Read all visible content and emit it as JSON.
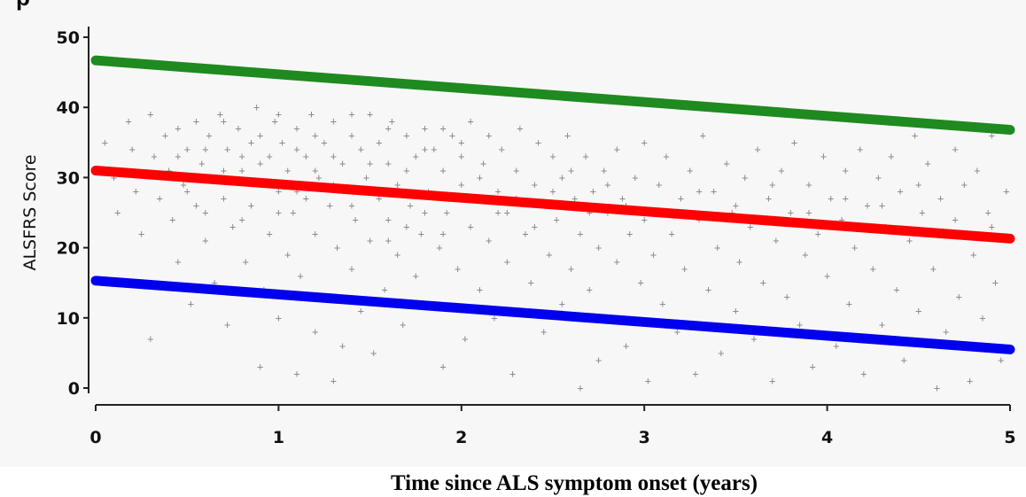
{
  "chart_data": {
    "type": "scatter",
    "title_fragment": "p",
    "xlabel": "Time since ALS symptom onset (years)",
    "ylabel": "ALSFRS Score",
    "xlim": [
      0,
      5
    ],
    "ylim": [
      0,
      50
    ],
    "x_ticks": [
      0,
      1,
      2,
      3,
      4,
      5
    ],
    "y_ticks": [
      0,
      10,
      20,
      30,
      40,
      50
    ],
    "grid": false,
    "legend": "none",
    "marker": "+",
    "lines": [
      {
        "color": "#1f8a1f",
        "x": [
          0,
          5
        ],
        "y": [
          46.7,
          36.8
        ]
      },
      {
        "color": "#ff0000",
        "x": [
          0,
          5
        ],
        "y": [
          31.0,
          21.3
        ]
      },
      {
        "color": "#0000ee",
        "x": [
          0,
          5
        ],
        "y": [
          15.3,
          5.5
        ]
      }
    ],
    "scatter": {
      "color": "#8c8c8c",
      "points": [
        [
          0.05,
          35
        ],
        [
          0.1,
          30
        ],
        [
          0.12,
          25
        ],
        [
          0.18,
          38
        ],
        [
          0.2,
          34
        ],
        [
          0.22,
          28
        ],
        [
          0.25,
          22
        ],
        [
          0.3,
          7
        ],
        [
          0.3,
          39
        ],
        [
          0.32,
          33
        ],
        [
          0.35,
          27
        ],
        [
          0.38,
          36
        ],
        [
          0.4,
          31
        ],
        [
          0.42,
          24
        ],
        [
          0.45,
          18
        ],
        [
          0.45,
          37
        ],
        [
          0.48,
          29
        ],
        [
          0.5,
          34
        ],
        [
          0.52,
          12
        ],
        [
          0.55,
          38
        ],
        [
          0.55,
          26
        ],
        [
          0.58,
          32
        ],
        [
          0.6,
          21
        ],
        [
          0.62,
          36
        ],
        [
          0.65,
          15
        ],
        [
          0.65,
          30
        ],
        [
          0.68,
          39
        ],
        [
          0.7,
          27
        ],
        [
          0.72,
          34
        ],
        [
          0.72,
          9
        ],
        [
          0.75,
          23
        ],
        [
          0.78,
          37
        ],
        [
          0.8,
          31
        ],
        [
          0.82,
          18
        ],
        [
          0.85,
          35
        ],
        [
          0.85,
          26
        ],
        [
          0.88,
          40
        ],
        [
          0.9,
          29
        ],
        [
          0.9,
          3
        ],
        [
          0.92,
          14
        ],
        [
          0.95,
          33
        ],
        [
          0.95,
          22
        ],
        [
          0.98,
          38
        ],
        [
          1.0,
          28
        ],
        [
          1.0,
          10
        ],
        [
          1.02,
          35
        ],
        [
          1.05,
          19
        ],
        [
          1.05,
          31
        ],
        [
          1.08,
          25
        ],
        [
          1.1,
          37
        ],
        [
          1.1,
          2
        ],
        [
          1.12,
          16
        ],
        [
          1.15,
          33
        ],
        [
          1.15,
          27
        ],
        [
          1.18,
          39
        ],
        [
          1.2,
          22
        ],
        [
          1.2,
          8
        ],
        [
          1.22,
          30
        ],
        [
          1.25,
          35
        ],
        [
          1.25,
          13
        ],
        [
          1.28,
          26
        ],
        [
          1.3,
          38
        ],
        [
          1.3,
          1
        ],
        [
          1.32,
          20
        ],
        [
          1.35,
          32
        ],
        [
          1.35,
          6
        ],
        [
          1.38,
          28
        ],
        [
          1.4,
          36
        ],
        [
          1.4,
          17
        ],
        [
          1.42,
          24
        ],
        [
          1.45,
          34
        ],
        [
          1.45,
          11
        ],
        [
          1.48,
          30
        ],
        [
          1.5,
          39
        ],
        [
          1.5,
          21
        ],
        [
          1.52,
          5
        ],
        [
          1.55,
          27
        ],
        [
          1.55,
          35
        ],
        [
          1.58,
          14
        ],
        [
          1.6,
          32
        ],
        [
          1.6,
          24
        ],
        [
          1.62,
          38
        ],
        [
          1.65,
          19
        ],
        [
          1.65,
          29
        ],
        [
          1.68,
          9
        ],
        [
          1.7,
          36
        ],
        [
          1.72,
          26
        ],
        [
          1.75,
          33
        ],
        [
          1.75,
          16
        ],
        [
          1.78,
          22
        ],
        [
          1.8,
          37
        ],
        [
          1.82,
          28
        ],
        [
          1.85,
          12
        ],
        [
          1.85,
          34
        ],
        [
          1.88,
          20
        ],
        [
          1.9,
          31
        ],
        [
          1.9,
          3
        ],
        [
          1.92,
          25
        ],
        [
          1.95,
          36
        ],
        [
          1.98,
          17
        ],
        [
          2.0,
          29
        ],
        [
          2.0,
          33
        ],
        [
          2.02,
          7
        ],
        [
          2.05,
          23
        ],
        [
          2.05,
          38
        ],
        [
          2.08,
          27
        ],
        [
          2.1,
          14
        ],
        [
          2.12,
          32
        ],
        [
          2.15,
          21
        ],
        [
          2.15,
          36
        ],
        [
          2.18,
          10
        ],
        [
          2.2,
          28
        ],
        [
          2.22,
          34
        ],
        [
          2.25,
          18
        ],
        [
          2.25,
          25
        ],
        [
          2.28,
          2
        ],
        [
          2.3,
          31
        ],
        [
          2.32,
          37
        ],
        [
          2.35,
          22
        ],
        [
          2.38,
          15
        ],
        [
          2.4,
          29
        ],
        [
          2.42,
          35
        ],
        [
          2.45,
          8
        ],
        [
          2.45,
          26
        ],
        [
          2.48,
          19
        ],
        [
          2.5,
          33
        ],
        [
          2.52,
          24
        ],
        [
          2.55,
          12
        ],
        [
          2.55,
          30
        ],
        [
          2.58,
          36
        ],
        [
          2.6,
          17
        ],
        [
          2.62,
          27
        ],
        [
          2.65,
          0
        ],
        [
          2.65,
          22
        ],
        [
          2.68,
          33
        ],
        [
          2.7,
          14
        ],
        [
          2.72,
          28
        ],
        [
          2.75,
          4
        ],
        [
          2.75,
          20
        ],
        [
          2.78,
          31
        ],
        [
          2.8,
          25
        ],
        [
          2.82,
          10
        ],
        [
          2.85,
          34
        ],
        [
          2.85,
          18
        ],
        [
          2.88,
          27
        ],
        [
          2.9,
          6
        ],
        [
          2.92,
          22
        ],
        [
          2.95,
          30
        ],
        [
          2.98,
          15
        ],
        [
          3.0,
          35
        ],
        [
          3.0,
          24
        ],
        [
          3.02,
          1
        ],
        [
          3.05,
          19
        ],
        [
          3.08,
          29
        ],
        [
          3.1,
          12
        ],
        [
          3.12,
          33
        ],
        [
          3.15,
          22
        ],
        [
          3.18,
          8
        ],
        [
          3.2,
          27
        ],
        [
          3.22,
          17
        ],
        [
          3.25,
          31
        ],
        [
          3.28,
          2
        ],
        [
          3.3,
          24
        ],
        [
          3.32,
          36
        ],
        [
          3.35,
          14
        ],
        [
          3.38,
          28
        ],
        [
          3.4,
          20
        ],
        [
          3.42,
          5
        ],
        [
          3.45,
          32
        ],
        [
          3.48,
          25
        ],
        [
          3.5,
          11
        ],
        [
          3.52,
          18
        ],
        [
          3.55,
          30
        ],
        [
          3.58,
          23
        ],
        [
          3.6,
          7
        ],
        [
          3.62,
          34
        ],
        [
          3.65,
          15
        ],
        [
          3.68,
          27
        ],
        [
          3.7,
          1
        ],
        [
          3.72,
          21
        ],
        [
          3.75,
          31
        ],
        [
          3.78,
          13
        ],
        [
          3.8,
          25
        ],
        [
          3.82,
          35
        ],
        [
          3.85,
          9
        ],
        [
          3.88,
          19
        ],
        [
          3.9,
          29
        ],
        [
          3.92,
          3
        ],
        [
          3.95,
          22
        ],
        [
          3.98,
          33
        ],
        [
          4.0,
          16
        ],
        [
          4.02,
          27
        ],
        [
          4.05,
          6
        ],
        [
          4.08,
          24
        ],
        [
          4.1,
          31
        ],
        [
          4.12,
          12
        ],
        [
          4.15,
          20
        ],
        [
          4.18,
          34
        ],
        [
          4.2,
          2
        ],
        [
          4.22,
          26
        ],
        [
          4.25,
          17
        ],
        [
          4.28,
          30
        ],
        [
          4.3,
          9
        ],
        [
          4.32,
          23
        ],
        [
          4.35,
          33
        ],
        [
          4.38,
          14
        ],
        [
          4.4,
          28
        ],
        [
          4.42,
          4
        ],
        [
          4.45,
          21
        ],
        [
          4.48,
          36
        ],
        [
          4.5,
          11
        ],
        [
          4.52,
          25
        ],
        [
          4.55,
          32
        ],
        [
          4.58,
          17
        ],
        [
          4.6,
          0
        ],
        [
          4.62,
          27
        ],
        [
          4.65,
          8
        ],
        [
          4.68,
          22
        ],
        [
          4.7,
          34
        ],
        [
          4.72,
          13
        ],
        [
          4.75,
          29
        ],
        [
          4.78,
          1
        ],
        [
          4.8,
          19
        ],
        [
          4.82,
          31
        ],
        [
          4.85,
          10
        ],
        [
          4.88,
          25
        ],
        [
          4.9,
          36
        ],
        [
          4.92,
          15
        ],
        [
          4.95,
          4
        ],
        [
          4.98,
          28
        ],
        [
          0.6,
          34
        ],
        [
          0.7,
          38
        ],
        [
          0.8,
          33
        ],
        [
          0.9,
          36
        ],
        [
          1.0,
          39
        ],
        [
          1.1,
          34
        ],
        [
          1.2,
          36
        ],
        [
          1.3,
          33
        ],
        [
          1.4,
          39
        ],
        [
          1.5,
          32
        ],
        [
          1.6,
          37
        ],
        [
          1.7,
          31
        ],
        [
          1.8,
          34
        ],
        [
          1.9,
          37
        ],
        [
          2.0,
          35
        ],
        [
          0.5,
          28
        ],
        [
          0.6,
          25
        ],
        [
          0.7,
          31
        ],
        [
          0.8,
          24
        ],
        [
          0.9,
          32
        ],
        [
          1.0,
          25
        ],
        [
          1.1,
          28
        ],
        [
          1.2,
          31
        ],
        [
          1.3,
          29
        ],
        [
          1.4,
          26
        ],
        [
          1.5,
          28
        ],
        [
          1.6,
          21
        ],
        [
          1.7,
          23
        ],
        [
          1.8,
          25
        ],
        [
          1.9,
          22
        ],
        [
          2.1,
          30
        ],
        [
          2.2,
          25
        ],
        [
          2.3,
          27
        ],
        [
          2.4,
          23
        ],
        [
          2.5,
          28
        ],
        [
          2.6,
          31
        ],
        [
          2.7,
          25
        ],
        [
          2.8,
          29
        ],
        [
          2.9,
          26
        ],
        [
          3.1,
          25
        ],
        [
          3.3,
          28
        ],
        [
          3.5,
          26
        ],
        [
          3.7,
          29
        ],
        [
          3.9,
          25
        ],
        [
          4.1,
          27
        ],
        [
          4.3,
          26
        ],
        [
          4.5,
          29
        ],
        [
          4.7,
          24
        ],
        [
          4.9,
          23
        ],
        [
          0.45,
          33
        ]
      ]
    }
  }
}
